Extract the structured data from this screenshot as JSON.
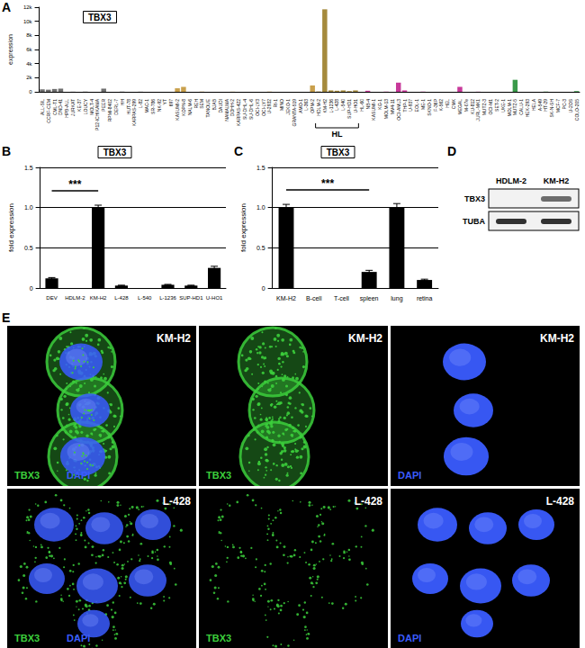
{
  "chart_data": [
    {
      "panel": "A",
      "type": "bar",
      "title": "TBX3",
      "ylabel": "expression",
      "categories": [
        "ALL-SIL",
        "CCRF-CEM",
        "CML-T1",
        "DND-41",
        "HPB-ALL",
        "JURKAT",
        "KE-37",
        "LOUCY",
        "MOLT-4",
        "P12-ICHIKAWA",
        "PEER",
        "RPMI-8402",
        "DERL-7",
        "HH",
        "HUT-78",
        "KARPAS-299",
        "L-82",
        "MAC-1",
        "SR-786",
        "NK-92",
        "YT",
        "697",
        "KASUMI-2",
        "KOPN-8",
        "NALM-6",
        "REH",
        "SEM",
        "TANOUE",
        "BJAB",
        "DAUDI",
        "NAMALWA",
        "DOHH-2",
        "KARPAS-422",
        "SU-DHL-4",
        "SU-DHL-6",
        "OCI-LY3",
        "OCI-LY7",
        "U-2932",
        "RI-1",
        "MINO",
        "JEKO-1",
        "GRANTA-519",
        "AMO-1",
        "L-363",
        "OPM-2",
        "HDLM-2",
        "KM-H2",
        "L-1236",
        "L-428",
        "L-540",
        "SUP-HD1",
        "U-HO1",
        "HL-60",
        "NB-4",
        "KASUMI-1",
        "KG-1",
        "MOLM-13",
        "MV4-11",
        "OCI-AML3",
        "THP-1",
        "U-937",
        "EOL-1",
        "ME-1",
        "SKNO-1",
        "F-36P",
        "K-562",
        "HEL",
        "CMK",
        "MEGAL",
        "M-07e",
        "KU-812",
        "JURL-MK1",
        "MUTZ-3",
        "OCI-M1",
        "SET-2",
        "UKE-1",
        "MOLM-1",
        "MUTZ-5",
        "CALU-1",
        "HEK-293",
        "HELA",
        "A-549",
        "HT-29",
        "SK-N-SH",
        "MCF-7",
        "PC-3",
        "U-2OS",
        "COLO-205"
      ],
      "values": [
        350,
        300,
        400,
        450,
        0,
        20,
        0,
        30,
        0,
        0,
        450,
        0,
        0,
        30,
        0,
        0,
        20,
        0,
        0,
        0,
        0,
        0,
        500,
        700,
        0,
        0,
        30,
        0,
        0,
        0,
        0,
        20,
        0,
        0,
        0,
        0,
        0,
        30,
        0,
        0,
        0,
        0,
        0,
        0,
        900,
        50,
        11700,
        200,
        150,
        200,
        100,
        200,
        0,
        150,
        0,
        0,
        30,
        0,
        1300,
        200,
        0,
        0,
        30,
        0,
        0,
        0,
        0,
        0,
        700,
        0,
        0,
        20,
        0,
        0,
        0,
        0,
        0,
        1700,
        0,
        0,
        0,
        0,
        30,
        0,
        0,
        0,
        0,
        100
      ],
      "colors": [
        "#6e6e6e",
        "#6e6e6e",
        "#6e6e6e",
        "#6e6e6e",
        "#6e6e6e",
        "#6e6e6e",
        "#6e6e6e",
        "#6e6e6e",
        "#6e6e6e",
        "#6e6e6e",
        "#6e6e6e",
        "#6e6e6e",
        "#6e6e6e",
        "#6e6e6e",
        "#6e6e6e",
        "#6e6e6e",
        "#6e6e6e",
        "#6e6e6e",
        "#6e6e6e",
        "#6e6e6e",
        "#6e6e6e",
        "#c9a04c",
        "#c9a04c",
        "#c9a04c",
        "#c9a04c",
        "#c9a04c",
        "#c9a04c",
        "#c9a04c",
        "#c9a04c",
        "#c9a04c",
        "#c9a04c",
        "#c9a04c",
        "#c9a04c",
        "#c9a04c",
        "#c9a04c",
        "#c9a04c",
        "#c9a04c",
        "#c9a04c",
        "#c9a04c",
        "#c9a04c",
        "#c9a04c",
        "#c9a04c",
        "#c9a04c",
        "#c9a04c",
        "#c9a04c",
        "#a58a3c",
        "#a58a3c",
        "#a58a3c",
        "#a58a3c",
        "#a58a3c",
        "#a58a3c",
        "#a58a3c",
        "#c8399a",
        "#c8399a",
        "#c8399a",
        "#c8399a",
        "#c8399a",
        "#c8399a",
        "#c8399a",
        "#c8399a",
        "#c8399a",
        "#c8399a",
        "#c8399a",
        "#c8399a",
        "#c8399a",
        "#c8399a",
        "#c8399a",
        "#c8399a",
        "#c8399a",
        "#c8399a",
        "#c8399a",
        "#c8399a",
        "#c8399a",
        "#c8399a",
        "#c8399a",
        "#c8399a",
        "#3a9a4a",
        "#3a9a4a",
        "#3a9a4a",
        "#3a9a4a",
        "#3a9a4a",
        "#3a9a4a",
        "#3a9a4a",
        "#3a9a4a",
        "#3a9a4a",
        "#3a9a4a",
        "#3a9a4a",
        "#3a9a4a"
      ],
      "ylim": [
        0,
        12000
      ],
      "yticks": [
        0,
        {
          "value": 2000,
          "label": "2k"
        },
        {
          "value": 4000,
          "label": "4k"
        },
        {
          "value": 6000,
          "label": "6k"
        },
        {
          "value": 8000,
          "label": "8k"
        },
        {
          "value": 10000,
          "label": "10k"
        },
        {
          "value": 12000,
          "label": "12k"
        }
      ],
      "grid": false,
      "annotations": [
        {
          "text": "HL",
          "from": "HDLM-2",
          "to": "U-HO1"
        }
      ]
    },
    {
      "panel": "B",
      "type": "bar",
      "title": "TBX3",
      "ylabel": "fold expression",
      "categories": [
        "DEV",
        "HDLM-2",
        "KM-H2",
        "L-428",
        "L-540",
        "L-1236",
        "SUP-HD1",
        "U-HO1"
      ],
      "values": [
        0.12,
        0.0,
        1.0,
        0.03,
        0.0,
        0.04,
        0.03,
        0.25
      ],
      "errors": [
        0.01,
        0.0,
        0.03,
        0.005,
        0.0,
        0.005,
        0.005,
        0.02
      ],
      "color": "#000000",
      "ylim": [
        0,
        1.5
      ],
      "yticks": [
        0,
        0.5,
        {
          "value": 1,
          "label": "1.0"
        },
        1.5
      ],
      "grid": true,
      "annotations": [
        {
          "text": "***",
          "from": "DEV",
          "to": "KM-H2"
        }
      ]
    },
    {
      "panel": "C",
      "type": "bar",
      "title": "TBX3",
      "ylabel": "fold expression",
      "categories": [
        "KM-H2",
        "B-cell",
        "T-cell",
        "spleen",
        "lung",
        "retina"
      ],
      "values": [
        1.0,
        0.0,
        0.0,
        0.2,
        1.0,
        0.1
      ],
      "errors": [
        0.04,
        0.0,
        0.0,
        0.02,
        0.05,
        0.01
      ],
      "color": "#000000",
      "ylim": [
        0,
        1.5
      ],
      "yticks": [
        0,
        0.5,
        {
          "value": 1,
          "label": "1.0"
        },
        1.5
      ],
      "grid": true,
      "annotations": [
        {
          "text": "***",
          "from": "KM-H2",
          "to": "spleen"
        }
      ]
    }
  ],
  "blot": {
    "panel": "D",
    "lanes": [
      "HDLM-2",
      "KM-H2"
    ],
    "bands": [
      {
        "label": "TBX3",
        "intensity": [
          0,
          0.7
        ]
      },
      {
        "label": "TUBA",
        "intensity": [
          1,
          1
        ]
      }
    ]
  },
  "micrographs": {
    "panel": "E",
    "stain_colors": {
      "TBX3": "#3ccf3c",
      "DAPI": "#3a5cff"
    },
    "rows": [
      {
        "cell_line": "KM-H2",
        "images": [
          [
            "TBX3",
            "DAPI"
          ],
          [
            "TBX3"
          ],
          [
            "DAPI"
          ]
        ]
      },
      {
        "cell_line": "L-428",
        "images": [
          [
            "TBX3",
            "DAPI"
          ],
          [
            "TBX3"
          ],
          [
            "DAPI"
          ]
        ]
      }
    ]
  }
}
